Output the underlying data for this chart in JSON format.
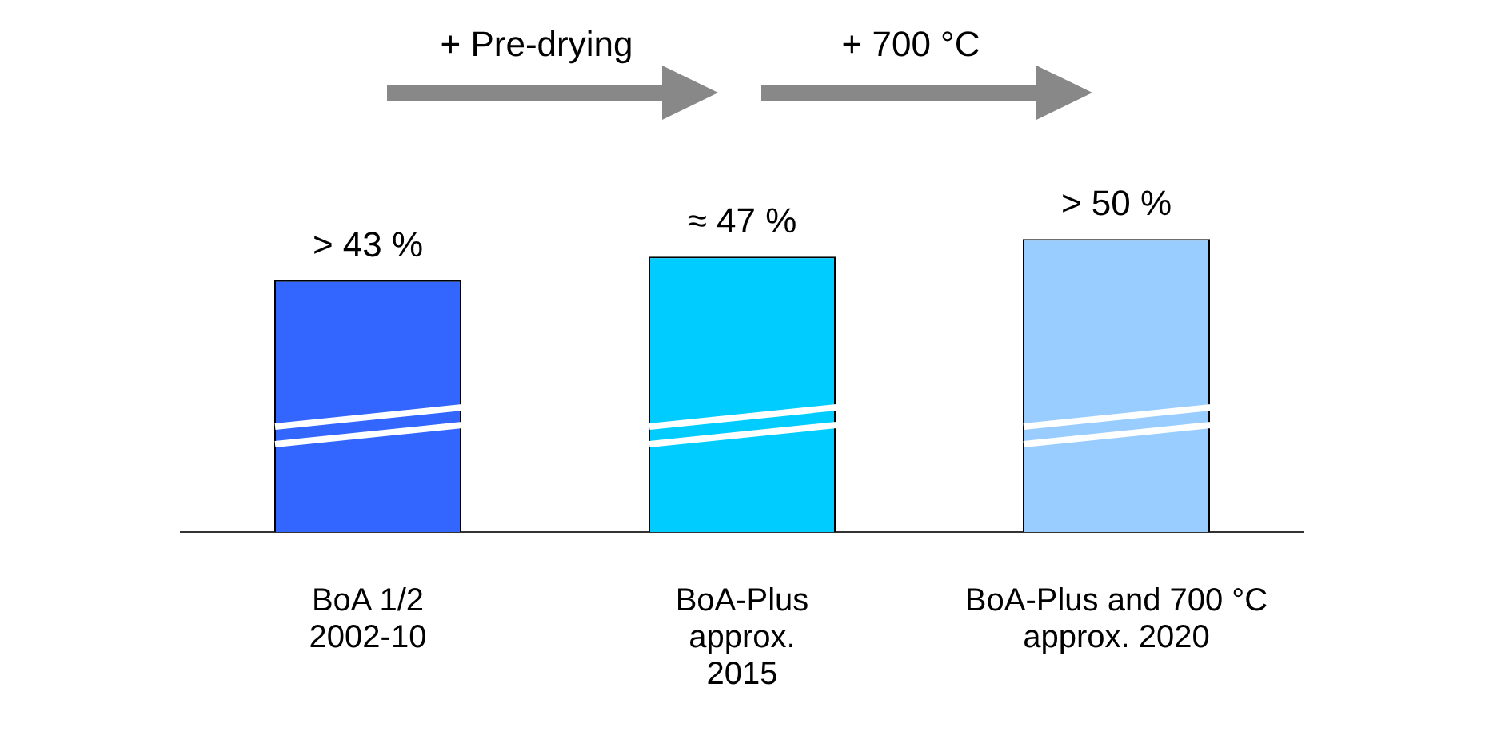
{
  "chart_data": {
    "type": "bar",
    "categories": [
      "BoA 1/2\n2002-10",
      "BoA-Plus\napprox.\n2015",
      "BoA-Plus and 700 °C\napprox. 2020"
    ],
    "values": [
      43,
      47,
      50
    ],
    "colors": [
      "#3366ff",
      "#00ccff",
      "#99ccff"
    ],
    "value_labels": [
      "> 43 %",
      "≈ 47 %",
      "> 50 %"
    ],
    "annotations": [
      "+ Pre-drying",
      "+ 700 °C"
    ],
    "legend": false,
    "grid": false
  }
}
